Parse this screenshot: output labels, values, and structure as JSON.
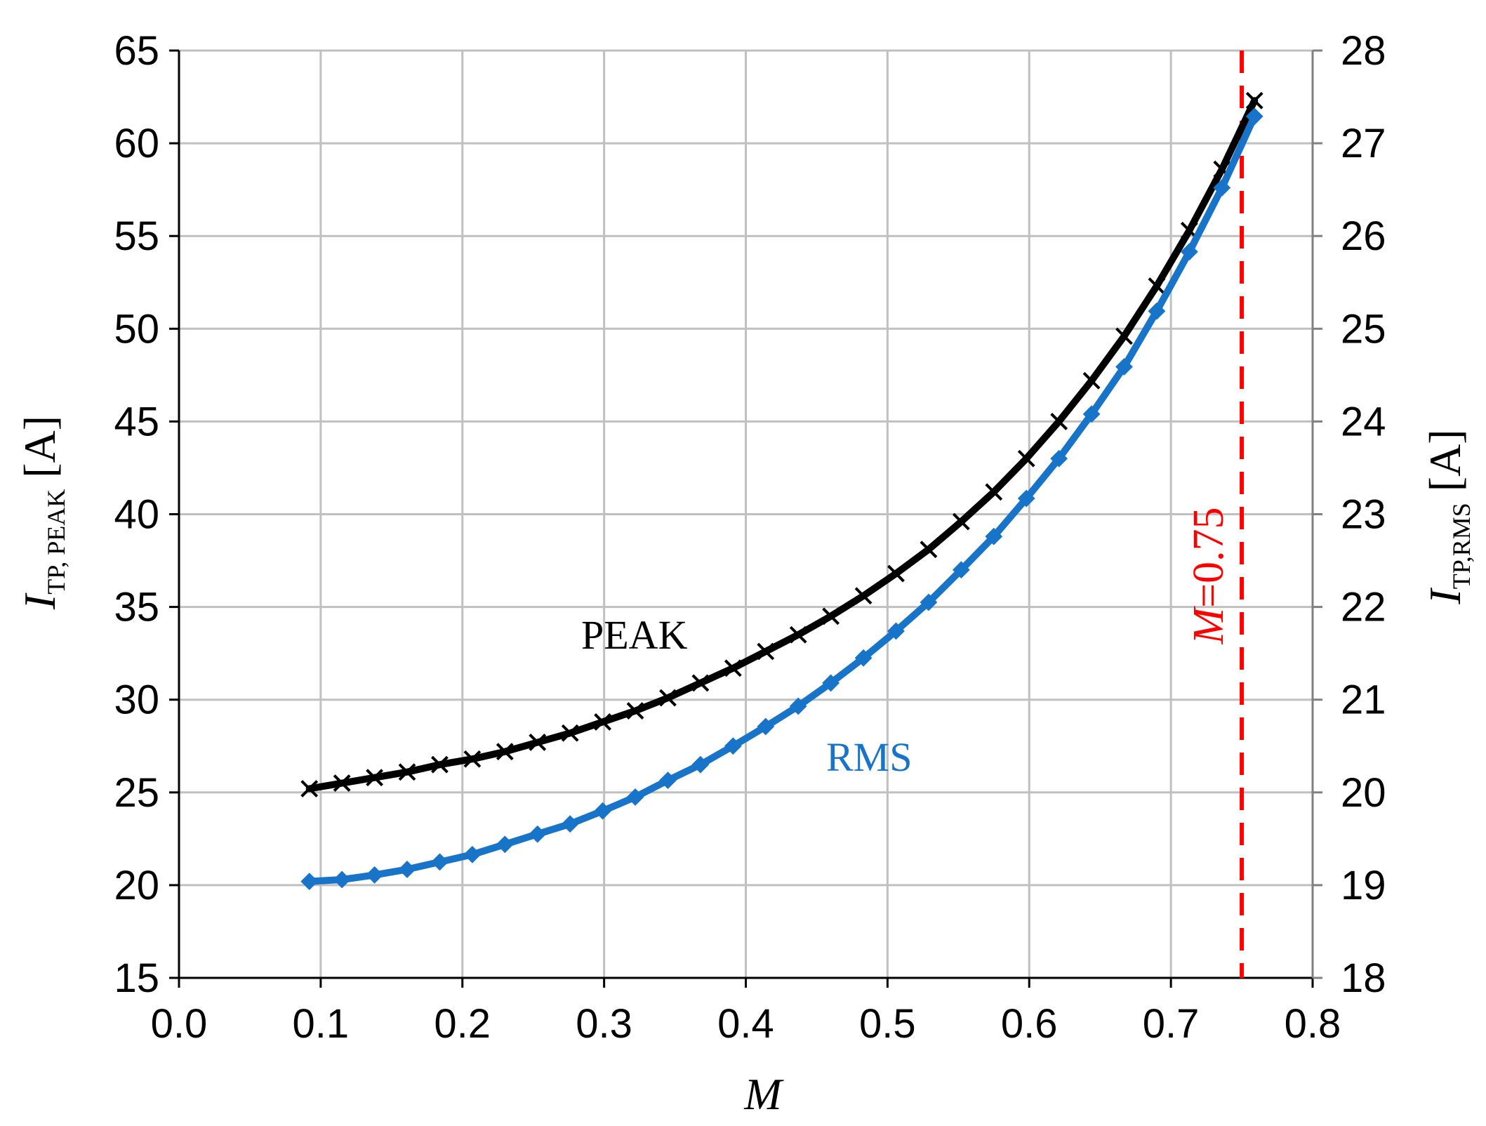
{
  "chart_data": {
    "type": "line",
    "xlabel": "M",
    "ylabel_left": {
      "main": "I",
      "sub": "TP, PEAK",
      "unit": " [A]"
    },
    "ylabel_right": {
      "main": "I",
      "sub": "TP,RMS",
      "unit": " [A]"
    },
    "xlim": [
      0.0,
      0.8
    ],
    "ylim_left": [
      15,
      65
    ],
    "ylim_right": [
      18,
      28
    ],
    "x_ticks": [
      "0.0",
      "0.1",
      "0.2",
      "0.3",
      "0.4",
      "0.5",
      "0.6",
      "0.7",
      "0.8"
    ],
    "y_ticks_left": [
      "15",
      "20",
      "25",
      "30",
      "35",
      "40",
      "45",
      "50",
      "55",
      "60",
      "65"
    ],
    "y_ticks_right": [
      "18",
      "19",
      "20",
      "21",
      "22",
      "23",
      "24",
      "25",
      "26",
      "27",
      "28"
    ],
    "grid": true,
    "x": [
      0.092,
      0.115,
      0.138,
      0.161,
      0.184,
      0.207,
      0.23,
      0.253,
      0.276,
      0.299,
      0.322,
      0.345,
      0.368,
      0.391,
      0.414,
      0.437,
      0.46,
      0.483,
      0.506,
      0.529,
      0.552,
      0.575,
      0.598,
      0.621,
      0.644,
      0.667,
      0.69,
      0.713,
      0.736,
      0.759
    ],
    "series": [
      {
        "name": "PEAK",
        "axis": "left",
        "color": "#000000",
        "marker": "x",
        "values": [
          25.2,
          25.5,
          25.8,
          26.1,
          26.5,
          26.8,
          27.2,
          27.7,
          28.2,
          28.8,
          29.4,
          30.1,
          30.9,
          31.7,
          32.6,
          33.5,
          34.5,
          35.6,
          36.8,
          38.1,
          39.6,
          41.2,
          43.0,
          45.0,
          47.2,
          49.6,
          52.3,
          55.3,
          58.6,
          62.3
        ]
      },
      {
        "name": "RMS",
        "axis": "right",
        "color": "#1874c8",
        "marker": "diamond",
        "values": [
          19.04,
          19.06,
          19.11,
          19.17,
          19.25,
          19.33,
          19.44,
          19.55,
          19.66,
          19.8,
          19.95,
          20.13,
          20.3,
          20.5,
          20.71,
          20.93,
          21.18,
          21.45,
          21.74,
          22.05,
          22.4,
          22.76,
          23.17,
          23.6,
          24.08,
          24.59,
          25.19,
          25.83,
          26.52,
          27.29
        ]
      }
    ],
    "vline": {
      "x": 0.75,
      "label_main": "M",
      "label_rest": "=0.75",
      "color": "#ff0000",
      "style": "dashed"
    },
    "annotations": [
      {
        "text": "PEAK",
        "series": "PEAK",
        "color": "#000000"
      },
      {
        "text": "RMS",
        "series": "RMS",
        "color": "#1874c8"
      }
    ]
  }
}
